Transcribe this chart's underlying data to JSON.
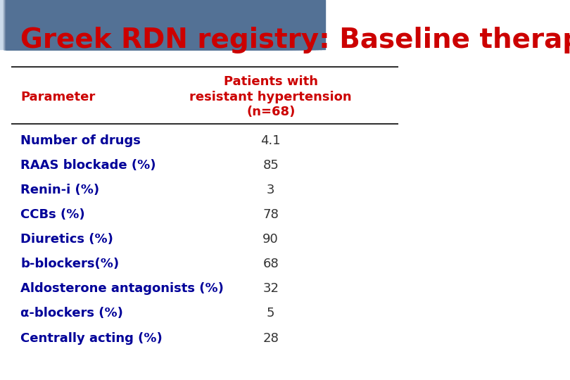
{
  "title": "Greek RDN registry: Baseline therapy",
  "title_color": "#cc0000",
  "title_fontsize": 28,
  "header_line1": "Patients with",
  "header_line2": "resistant hypertension",
  "header_line3": "(n=68)",
  "col_header": "Parameter",
  "parameters": [
    "Number of drugs",
    "RAAS blockade (%)",
    "Renin-i (%)",
    "CCBs (%)",
    "Diuretics (%)",
    "b-blockers(%)",
    "Aldosterone antagonists (%)",
    "α-blockers (%)",
    "Centrally acting (%)"
  ],
  "values": [
    "4.1",
    "85",
    "3",
    "78",
    "90",
    "68",
    "32",
    "5",
    "28"
  ],
  "param_color": "#000099",
  "value_color": "#333333",
  "header_color": "#cc0000",
  "bg_color": "#ffffff",
  "row_fontsize": 13,
  "header_fontsize": 13
}
